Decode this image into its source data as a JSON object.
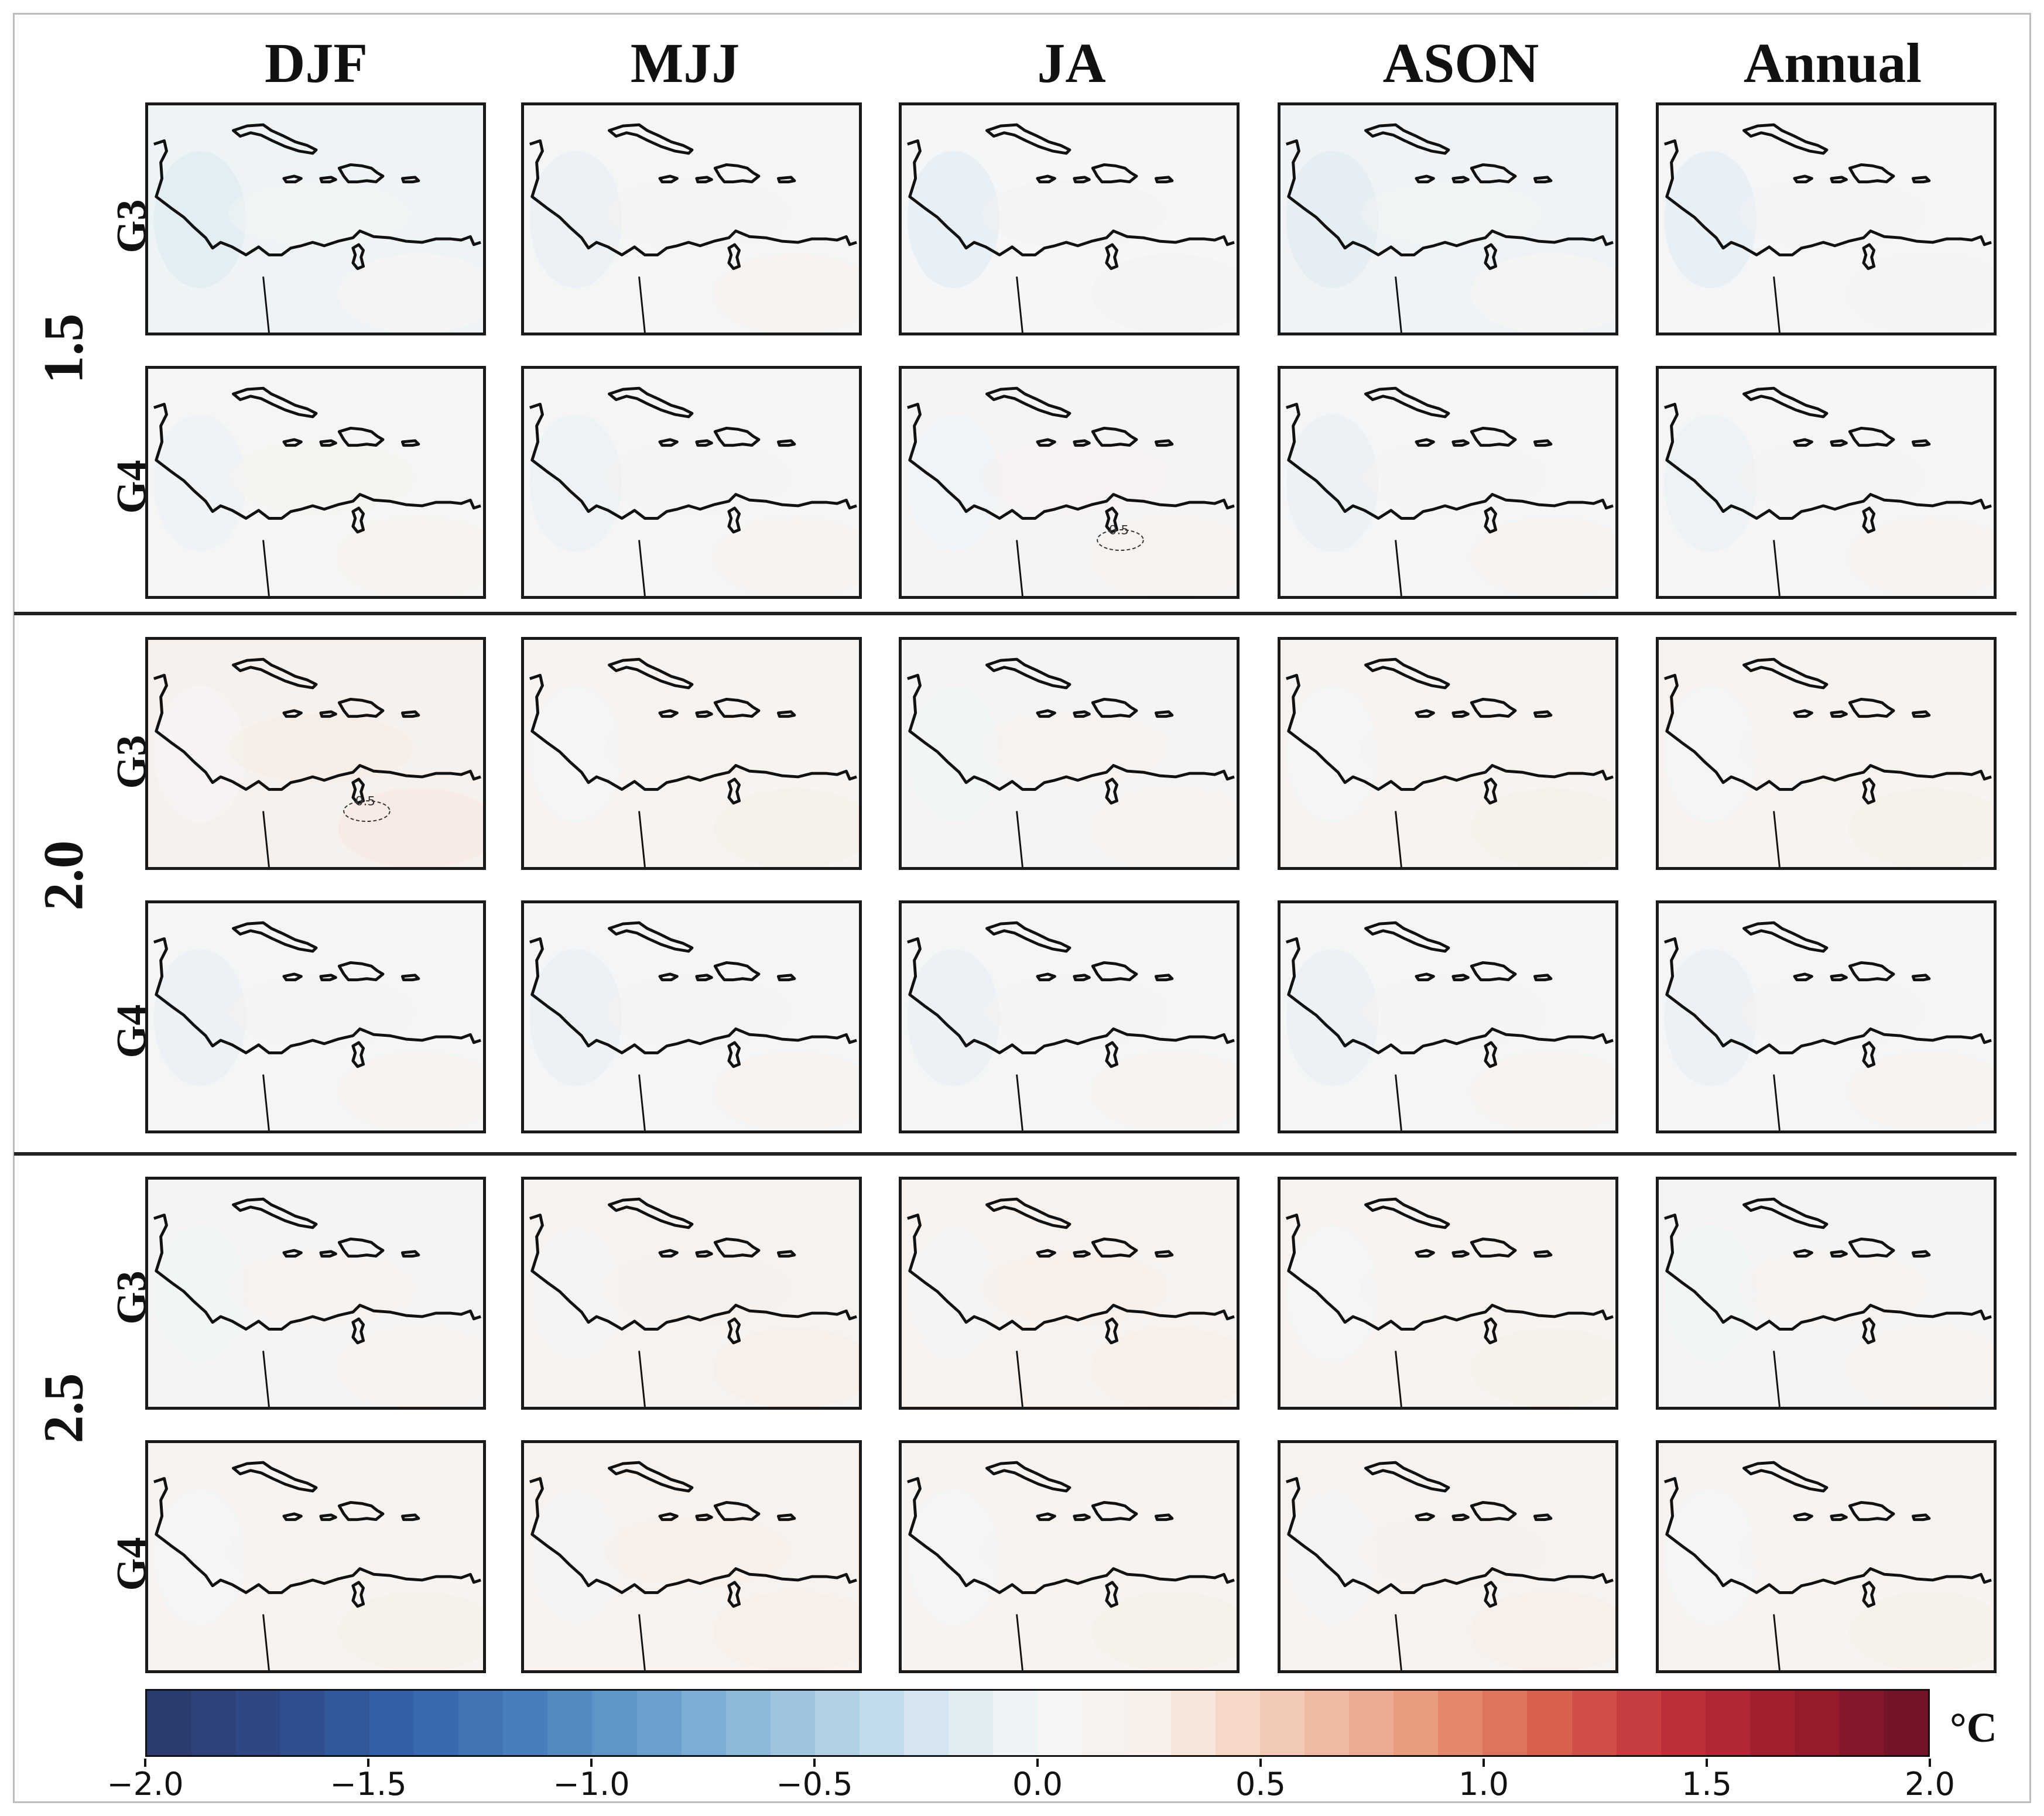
{
  "columns": [
    "DJF",
    "MJJ",
    "JA",
    "ASON",
    "Annual"
  ],
  "groups": [
    {
      "level": "1.5",
      "rows": [
        "G3",
        "G4"
      ]
    },
    {
      "level": "2.0",
      "rows": [
        "G3",
        "G4"
      ]
    },
    {
      "level": "2.5",
      "rows": [
        "G3",
        "G4"
      ]
    }
  ],
  "panels": [
    {
      "group": "1.5",
      "row": "G3",
      "season": "DJF",
      "mean_anomaly": -0.05
    },
    {
      "group": "1.5",
      "row": "G3",
      "season": "MJJ",
      "mean_anomaly": 0.02
    },
    {
      "group": "1.5",
      "row": "G3",
      "season": "JA",
      "mean_anomaly": 0.0
    },
    {
      "group": "1.5",
      "row": "G3",
      "season": "ASON",
      "mean_anomaly": -0.04
    },
    {
      "group": "1.5",
      "row": "G3",
      "season": "Annual",
      "mean_anomaly": -0.01
    },
    {
      "group": "1.5",
      "row": "G4",
      "season": "DJF",
      "mean_anomaly": 0.06
    },
    {
      "group": "1.5",
      "row": "G4",
      "season": "MJJ",
      "mean_anomaly": 0.04
    },
    {
      "group": "1.5",
      "row": "G4",
      "season": "JA",
      "mean_anomaly": 0.08,
      "contour": "0.5"
    },
    {
      "group": "1.5",
      "row": "G4",
      "season": "ASON",
      "mean_anomaly": 0.03
    },
    {
      "group": "1.5",
      "row": "G4",
      "season": "Annual",
      "mean_anomaly": 0.04
    },
    {
      "group": "2.0",
      "row": "G3",
      "season": "DJF",
      "mean_anomaly": 0.2,
      "contour": "0.5"
    },
    {
      "group": "2.0",
      "row": "G3",
      "season": "MJJ",
      "mean_anomaly": 0.12
    },
    {
      "group": "2.0",
      "row": "G3",
      "season": "JA",
      "mean_anomaly": 0.1
    },
    {
      "group": "2.0",
      "row": "G3",
      "season": "ASON",
      "mean_anomaly": 0.12
    },
    {
      "group": "2.0",
      "row": "G3",
      "season": "Annual",
      "mean_anomaly": 0.12
    },
    {
      "group": "2.0",
      "row": "G4",
      "season": "DJF",
      "mean_anomaly": 0.02
    },
    {
      "group": "2.0",
      "row": "G4",
      "season": "MJJ",
      "mean_anomaly": 0.03
    },
    {
      "group": "2.0",
      "row": "G4",
      "season": "JA",
      "mean_anomaly": 0.02
    },
    {
      "group": "2.0",
      "row": "G4",
      "season": "ASON",
      "mean_anomaly": 0.02
    },
    {
      "group": "2.0",
      "row": "G4",
      "season": "Annual",
      "mean_anomaly": 0.03
    },
    {
      "group": "2.5",
      "row": "G3",
      "season": "DJF",
      "mean_anomaly": 0.1
    },
    {
      "group": "2.5",
      "row": "G3",
      "season": "MJJ",
      "mean_anomaly": 0.16
    },
    {
      "group": "2.5",
      "row": "G3",
      "season": "JA",
      "mean_anomaly": 0.18
    },
    {
      "group": "2.5",
      "row": "G3",
      "season": "ASON",
      "mean_anomaly": 0.12
    },
    {
      "group": "2.5",
      "row": "G3",
      "season": "Annual",
      "mean_anomaly": 0.1
    },
    {
      "group": "2.5",
      "row": "G4",
      "season": "DJF",
      "mean_anomaly": 0.14
    },
    {
      "group": "2.5",
      "row": "G4",
      "season": "MJJ",
      "mean_anomaly": 0.18
    },
    {
      "group": "2.5",
      "row": "G4",
      "season": "JA",
      "mean_anomaly": 0.12
    },
    {
      "group": "2.5",
      "row": "G4",
      "season": "ASON",
      "mean_anomaly": 0.16
    },
    {
      "group": "2.5",
      "row": "G4",
      "season": "Annual",
      "mean_anomaly": 0.14
    }
  ],
  "colorbar": {
    "min": -2.0,
    "max": 2.0,
    "levels": 40,
    "ticks": [
      "−2.0",
      "−1.5",
      "−1.0",
      "−0.5",
      "0.0",
      "0.5",
      "1.0",
      "1.5",
      "2.0"
    ],
    "tick_values": [
      -2.0,
      -1.5,
      -1.0,
      -0.5,
      0.0,
      0.5,
      1.0,
      1.5,
      2.0
    ],
    "unit": "°C",
    "colors": [
      "#2b3a67",
      "#2e4a8a",
      "#3462a8",
      "#4a7fbd",
      "#6a9fcc",
      "#9ac3df",
      "#cfe3ee",
      "#f4f6f7",
      "#f8efe9",
      "#f2c7b0",
      "#e89a7c",
      "#d9624e",
      "#c02f3a",
      "#9b1c2e",
      "#6b1426"
    ]
  }
}
